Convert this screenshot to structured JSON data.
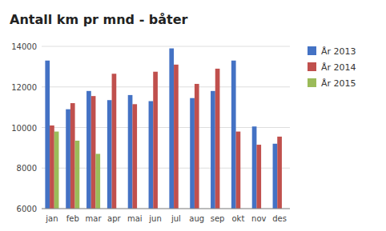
{
  "chart_data": {
    "type": "bar",
    "title": "Antall km pr mnd - båter",
    "categories": [
      "jan",
      "feb",
      "mar",
      "apr",
      "mai",
      "jun",
      "jul",
      "aug",
      "sep",
      "okt",
      "nov",
      "des"
    ],
    "series": [
      {
        "name": "År 2013",
        "color": "#4472C4",
        "values": [
          13300,
          10900,
          11800,
          11350,
          11600,
          11300,
          13900,
          11450,
          11800,
          13300,
          10050,
          9200
        ]
      },
      {
        "name": "År 2014",
        "color": "#C0504D",
        "values": [
          10100,
          11200,
          11550,
          12650,
          11150,
          12750,
          13100,
          12150,
          12900,
          9800,
          9150,
          9550
        ]
      },
      {
        "name": "År 2015",
        "color": "#9BBB59",
        "values": [
          9800,
          9350,
          8700,
          null,
          null,
          null,
          null,
          null,
          null,
          null,
          null,
          null
        ]
      }
    ],
    "ylim": [
      6000,
      14000
    ],
    "yticks": [
      6000,
      8000,
      10000,
      12000,
      14000
    ],
    "grid": true,
    "legend": "right"
  }
}
